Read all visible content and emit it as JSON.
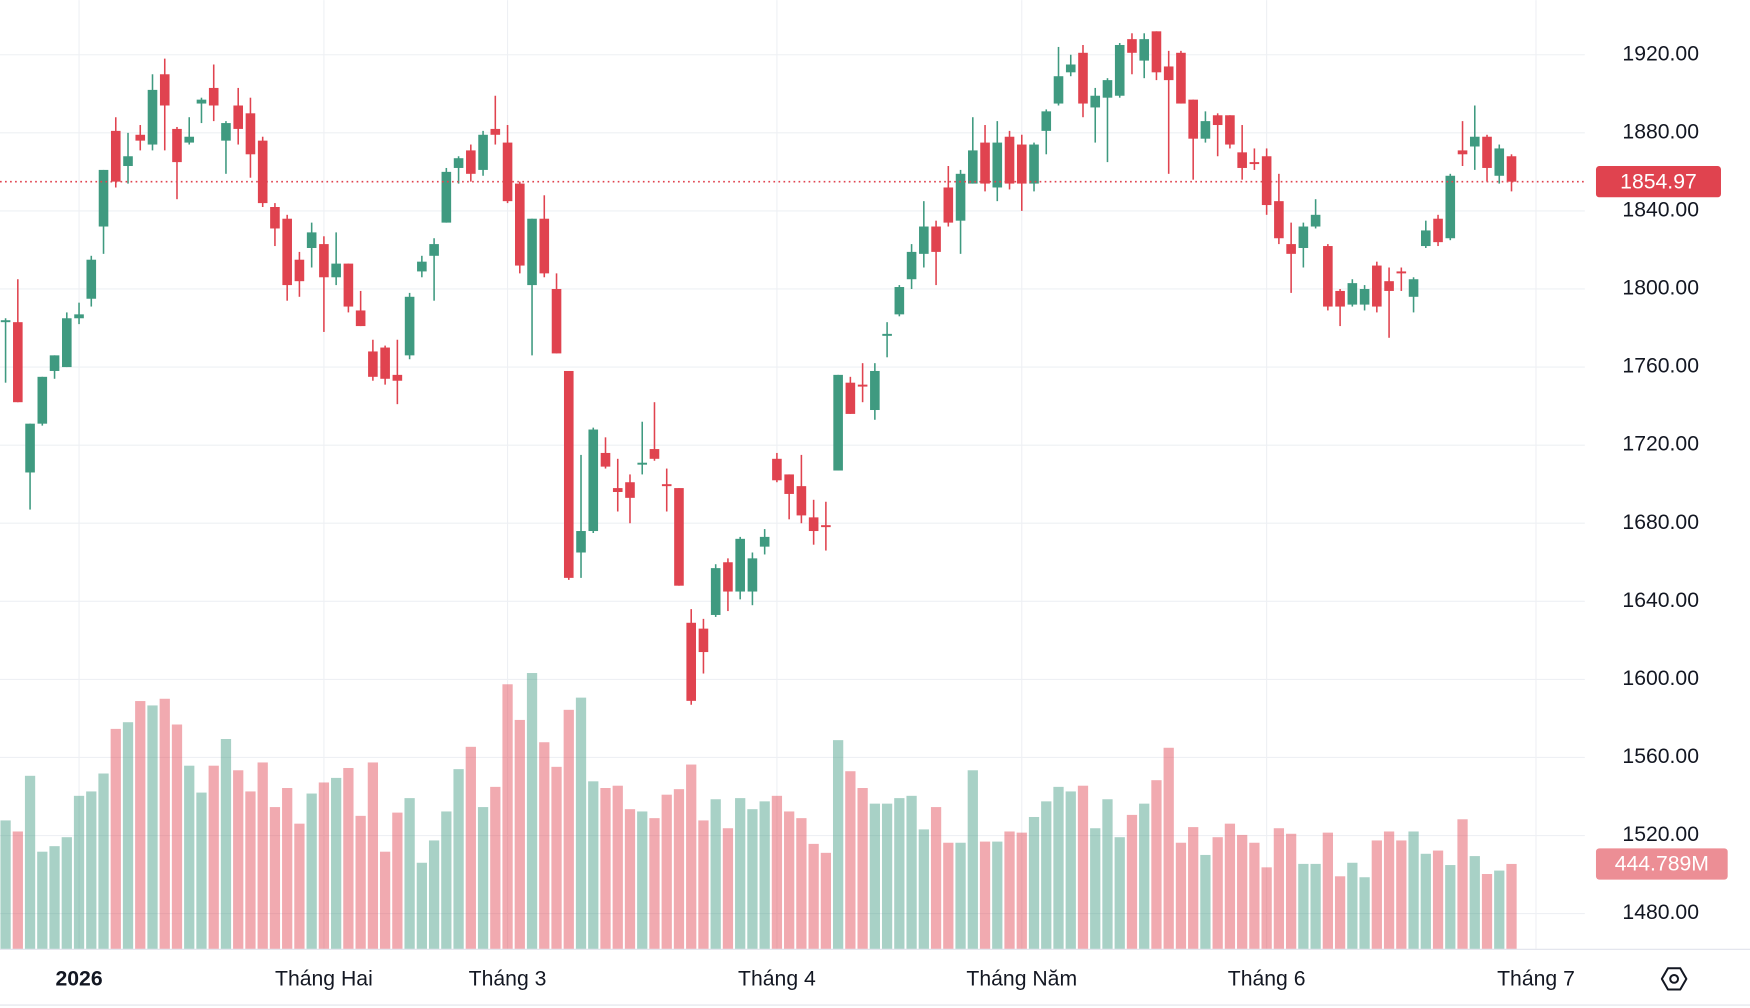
{
  "chart_data": {
    "type": "candlestick",
    "categories": [
      null,
      null,
      null,
      null,
      null,
      null,
      "2026",
      null,
      null,
      null,
      null,
      null,
      null,
      null,
      null,
      null,
      null,
      null,
      null,
      null,
      null,
      null,
      null,
      null,
      null,
      null,
      "Tháng Hai",
      null,
      null,
      null,
      null,
      null,
      null,
      null,
      null,
      null,
      null,
      null,
      null,
      null,
      null,
      "Tháng 3",
      null,
      null,
      null,
      null,
      null,
      null,
      null,
      null,
      null,
      null,
      null,
      null,
      null,
      null,
      null,
      null,
      null,
      null,
      null,
      null,
      null,
      "Tháng 4",
      null,
      null,
      null,
      null,
      null,
      null,
      null,
      null,
      null,
      null,
      null,
      null,
      null,
      null,
      null,
      null,
      null,
      null,
      null,
      "Tháng Năm",
      null,
      null,
      null,
      null,
      null,
      null,
      null,
      null,
      null,
      null,
      null,
      null,
      null,
      null,
      null,
      null,
      null,
      null,
      null,
      "Tháng 6",
      null,
      null,
      null,
      null,
      null,
      null,
      null,
      null,
      null,
      null,
      null,
      null,
      null,
      null,
      null,
      null,
      null,
      null,
      null,
      null,
      null,
      "Tháng 7"
    ],
    "open": [
      1783,
      1783,
      1706,
      1731,
      1758,
      1760,
      1785,
      1795,
      1832,
      1881,
      1863,
      1879,
      1874,
      1910,
      1882,
      1875,
      1895,
      1903,
      1876,
      1894,
      1890,
      1876,
      1842,
      1836,
      1815,
      1821,
      1823,
      1806,
      1813,
      1789,
      1768,
      1770,
      1756,
      1766,
      1809,
      1817,
      1834,
      1862,
      1871,
      1861,
      1882,
      1875,
      1854,
      1802,
      1836,
      1800,
      1758,
      1665,
      1676,
      1716,
      1698,
      1701,
      1710,
      1718,
      1700,
      1698,
      1629,
      1626,
      1633,
      1660,
      1645,
      1645,
      1668,
      1713,
      1705,
      1699,
      1683,
      1679,
      1707,
      1752,
      1751,
      1738,
      1776,
      1787,
      1805,
      1818,
      1832,
      1852,
      1835,
      1854,
      1875,
      1852,
      1878,
      1874,
      1854,
      1881,
      1895,
      1911,
      1921,
      1893,
      1898,
      1899,
      1928,
      1917,
      1932,
      1914,
      1921,
      1897,
      1877,
      1889,
      1889,
      1870,
      1865,
      1868,
      1845,
      1823,
      1821,
      1832,
      1822,
      1799,
      1792,
      1792,
      1812,
      1804,
      1809,
      1796,
      1822,
      1836,
      1826,
      1871,
      1873,
      1878,
      1858,
      1868,
      null,
      null
    ],
    "high": [
      1785,
      1805,
      1731,
      1755,
      1766,
      1788,
      1793,
      1817,
      1861,
      1888,
      1880,
      1884,
      1910,
      1918,
      1883,
      1888,
      1898,
      1915,
      1886,
      1903,
      1898,
      1878,
      1844,
      1838,
      1819,
      1834,
      1827,
      1829,
      1813,
      1799,
      1774,
      1771,
      1774,
      1798,
      1817,
      1826,
      1862,
      1868,
      1874,
      1881,
      1899,
      1884,
      1855,
      1836,
      1848,
      1808,
      1758,
      1715,
      1729,
      1724,
      1713,
      1705,
      1732,
      1742,
      1708,
      1698,
      1636,
      1631,
      1659,
      1662,
      1673,
      1665,
      1677,
      1716,
      1705,
      1715,
      1692,
      1691,
      1756,
      1755,
      1762,
      1762,
      1783,
      1802,
      1823,
      1845,
      1835,
      1863,
      1861,
      1888,
      1884,
      1886,
      1881,
      1879,
      1875,
      1892,
      1924,
      1920,
      1925,
      1903,
      1908,
      1926,
      1931,
      1931,
      1932,
      1922,
      1922,
      1897,
      1891,
      1890,
      1889,
      1884,
      1872,
      1872,
      1859,
      1834,
      1834,
      1846,
      1823,
      1800,
      1805,
      1802,
      1814,
      1811,
      1811,
      1806,
      1835,
      1838,
      1859,
      1886,
      1894,
      1879,
      1874,
      1869,
      null,
      null
    ],
    "low": [
      1752,
      1742,
      1687,
      1730,
      1754,
      1760,
      1782,
      1791,
      1818,
      1852,
      1854,
      1871,
      1871,
      1871,
      1846,
      1874,
      1885,
      1886,
      1859,
      1874,
      1857,
      1842,
      1822,
      1794,
      1796,
      1811,
      1778,
      1802,
      1788,
      1781,
      1753,
      1751,
      1741,
      1764,
      1806,
      1794,
      1834,
      1854,
      1855,
      1858,
      1874,
      1844,
      1808,
      1766,
      1806,
      1767,
      1651,
      1652,
      1675,
      1708,
      1686,
      1680,
      1705,
      1712,
      1686,
      1648,
      1587,
      1603,
      1632,
      1635,
      1641,
      1638,
      1664,
      1701,
      1682,
      1680,
      1669,
      1666,
      1707,
      1736,
      1742,
      1733,
      1765,
      1786,
      1800,
      1811,
      1802,
      1832,
      1818,
      1854,
      1850,
      1845,
      1851,
      1840,
      1850,
      1869,
      1894,
      1909,
      1888,
      1875,
      1865,
      1898,
      1910,
      1908,
      1907,
      1859,
      1895,
      1856,
      1875,
      1868,
      1872,
      1856,
      1861,
      1838,
      1823,
      1798,
      1811,
      1831,
      1789,
      1781,
      1791,
      1789,
      1788,
      1775,
      1799,
      1788,
      1821,
      1822,
      1825,
      1863,
      1861,
      1855,
      1854,
      1850,
      null,
      null
    ],
    "close": [
      1784,
      1742,
      1731,
      1755,
      1766,
      1785,
      1787,
      1815,
      1861,
      1855,
      1868,
      1876,
      1902,
      1894,
      1865,
      1878,
      1897,
      1894,
      1885,
      1882,
      1869,
      1844,
      1831,
      1802,
      1804,
      1829,
      1806,
      1813,
      1791,
      1781,
      1755,
      1754,
      1753,
      1796,
      1814,
      1823,
      1860,
      1867,
      1859,
      1879,
      1879,
      1845,
      1812,
      1836,
      1808,
      1767,
      1652,
      1676,
      1728,
      1709,
      1696,
      1693,
      1711,
      1713,
      1699,
      1648,
      1589,
      1614,
      1657,
      1645,
      1672,
      1662,
      1673,
      1702,
      1695,
      1684,
      1676,
      1678,
      1756,
      1736,
      1750,
      1758,
      1777,
      1801,
      1819,
      1832,
      1819,
      1834,
      1859,
      1871,
      1854,
      1875,
      1854,
      1854,
      1874,
      1891,
      1909,
      1915,
      1895,
      1899,
      1907,
      1925,
      1921,
      1928,
      1911,
      1907,
      1895,
      1877,
      1886,
      1884,
      1874,
      1862,
      1864,
      1843,
      1826,
      1818,
      1832,
      1838,
      1791,
      1791,
      1803,
      1800,
      1791,
      1799,
      1808,
      1805,
      1830,
      1824,
      1858,
      1869,
      1878,
      1862,
      1872,
      1854.97,
      null,
      null
    ],
    "volume": [
      673,
      615,
      907,
      509,
      538,
      585,
      802,
      825,
      919,
      1153,
      1188,
      1299,
      1276,
      1311,
      1176,
      960,
      819,
      960,
      1100,
      936,
      825,
      977,
      743,
      843,
      656,
      814,
      872,
      896,
      948,
      697,
      977,
      509,
      714,
      790,
      451,
      568,
      720,
      942,
      1059,
      743,
      849,
      1387,
      1200,
      1446,
      1083,
      954,
      1253,
      1317,
      878,
      843,
      855,
      732,
      720,
      685,
      808,
      837,
      966,
      673,
      784,
      632,
      790,
      732,
      773,
      802,
      720,
      685,
      550,
      503,
      1094,
      931,
      843,
      761,
      761,
      790,
      802,
      626,
      743,
      556,
      556,
      936,
      562,
      562,
      615,
      609,
      691,
      773,
      849,
      825,
      855,
      632,
      784,
      585,
      702,
      761,
      884,
      1054,
      556,
      638,
      492,
      585,
      656,
      597,
      556,
      427,
      632,
      603,
      445,
      445,
      609,
      380,
      451,
      375,
      568,
      615,
      568,
      615,
      498,
      515,
      439,
      679,
      486,
      392,
      410,
      444.789,
      null,
      null
    ],
    "volume_value_labels": [
      null,
      null,
      null,
      null,
      null,
      null,
      null,
      null,
      null,
      null,
      null,
      null,
      null,
      null,
      null,
      null,
      null,
      null,
      null,
      null,
      null,
      null,
      null,
      null,
      null,
      null,
      null,
      null,
      null,
      null,
      null,
      null,
      null,
      null,
      null,
      null,
      null,
      null,
      null,
      null,
      null,
      null,
      null,
      null,
      null,
      null,
      null,
      null,
      null,
      null,
      null,
      null,
      null,
      null,
      null,
      null,
      null,
      null,
      null,
      null,
      null,
      null,
      null,
      null,
      null,
      null,
      null,
      null,
      null,
      null,
      null,
      null,
      null,
      null,
      null,
      null,
      null,
      null,
      null,
      null,
      null,
      null,
      null,
      null,
      null,
      null,
      null,
      null,
      null,
      null,
      null,
      null,
      null,
      null,
      null,
      null,
      null,
      null,
      null,
      null,
      null,
      null,
      null,
      null,
      null,
      null,
      null,
      null,
      null,
      null,
      null,
      null,
      null,
      null,
      null,
      null,
      null,
      null,
      null,
      null,
      null,
      null,
      null,
      "444.789M",
      null,
      null
    ],
    "ylim": [
      1462,
      1948
    ],
    "yticks": [
      {
        "value": 1480,
        "label": "1480.00"
      },
      {
        "value": 1520,
        "label": "1520.00"
      },
      {
        "value": 1560,
        "label": "1560.00"
      },
      {
        "value": 1600,
        "label": "1600.00"
      },
      {
        "value": 1640,
        "label": "1640.00"
      },
      {
        "value": 1680,
        "label": "1680.00"
      },
      {
        "value": 1720,
        "label": "1720.00"
      },
      {
        "value": 1760,
        "label": "1760.00"
      },
      {
        "value": 1800,
        "label": "1800.00"
      },
      {
        "value": 1840,
        "label": "1840.00"
      },
      {
        "value": 1880,
        "label": "1880.00"
      },
      {
        "value": 1920,
        "label": "1920.00"
      }
    ],
    "volume_lim": [
      0,
      4975
    ],
    "up_color": "#3f9a80",
    "down_color": "#e0434f",
    "grid": true
  }
}
